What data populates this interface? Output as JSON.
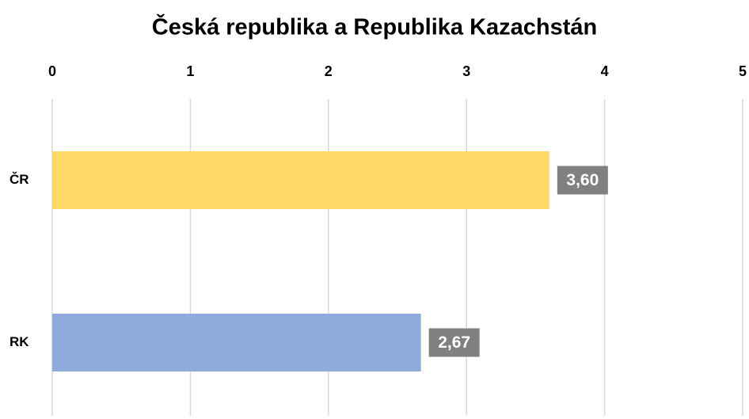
{
  "chart_data": {
    "type": "bar",
    "orientation": "horizontal",
    "title": "Česká republika a Republika Kazachstán",
    "categories": [
      "ČR",
      "RK"
    ],
    "values": [
      3.6,
      2.67
    ],
    "value_labels": [
      "3,60",
      "2,67"
    ],
    "colors": [
      "#ffd966",
      "#8faadc"
    ],
    "label_box_color": "#808080",
    "xlim": [
      0,
      5
    ],
    "xticks": [
      0,
      1,
      2,
      3,
      4,
      5
    ],
    "grid": true,
    "x_axis_position": "top"
  }
}
